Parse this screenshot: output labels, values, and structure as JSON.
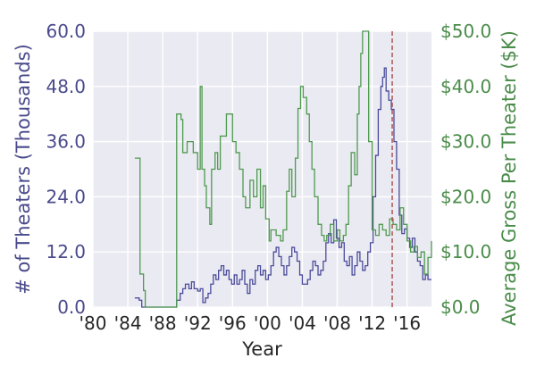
{
  "chart_data": {
    "type": "line",
    "xlabel": "Year",
    "ylabel_left": "# of Theaters (Thousands)",
    "ylabel_right": "Average Gross Per Theater ($K)",
    "xlim": [
      1980,
      2018.8
    ],
    "ylim_left": [
      0,
      60
    ],
    "ylim_right": [
      0,
      50
    ],
    "x_ticks": [
      1980,
      1984,
      1988,
      1992,
      1996,
      2000,
      2004,
      2008,
      2012,
      2016
    ],
    "x_tick_labels": [
      "'80",
      "'84",
      "'88",
      "'92",
      "'96",
      "'00",
      "'04",
      "'08",
      "'12",
      "'16"
    ],
    "y_left_ticks": [
      0,
      12,
      24,
      36,
      48,
      60
    ],
    "y_left_tick_labels": [
      "0.0",
      "12.0",
      "24.0",
      "36.0",
      "48.0",
      "60.0"
    ],
    "y_right_ticks": [
      0,
      10,
      20,
      30,
      40,
      50
    ],
    "y_right_tick_labels": [
      "$0.0",
      "$10.0",
      "$20.0",
      "$30.0",
      "$40.0",
      "$50.0"
    ],
    "grid": true,
    "background": "#eaeaf2",
    "colors": {
      "theaters": "#4b4b9b",
      "gross": "#4f9a4f",
      "marker": "#b05555"
    },
    "reference_line_x": 2014.3,
    "series": [
      {
        "axis": "left",
        "points": [
          [
            1984.8,
            2
          ],
          [
            1985.0,
            2
          ],
          [
            1985.3,
            1.5
          ],
          [
            1985.6,
            0
          ],
          [
            1986.0,
            0
          ],
          [
            1987.0,
            0
          ],
          [
            1988.0,
            0
          ],
          [
            1989.0,
            0
          ],
          [
            1989.6,
            1.5
          ],
          [
            1990.0,
            3
          ],
          [
            1990.3,
            4
          ],
          [
            1990.6,
            5
          ],
          [
            1991.0,
            4
          ],
          [
            1991.3,
            5.5
          ],
          [
            1991.6,
            4
          ],
          [
            1992.0,
            3.5
          ],
          [
            1992.3,
            4
          ],
          [
            1992.6,
            1
          ],
          [
            1992.9,
            2
          ],
          [
            1993.2,
            3
          ],
          [
            1993.5,
            5
          ],
          [
            1993.8,
            7
          ],
          [
            1994.1,
            6
          ],
          [
            1994.4,
            8
          ],
          [
            1994.7,
            9
          ],
          [
            1995.0,
            7
          ],
          [
            1995.3,
            8
          ],
          [
            1995.6,
            6
          ],
          [
            1995.9,
            5
          ],
          [
            1996.2,
            7
          ],
          [
            1996.5,
            5
          ],
          [
            1996.8,
            6
          ],
          [
            1997.1,
            8
          ],
          [
            1997.4,
            5
          ],
          [
            1997.7,
            3
          ],
          [
            1998.0,
            6
          ],
          [
            1998.3,
            5
          ],
          [
            1998.6,
            8
          ],
          [
            1998.9,
            9
          ],
          [
            1999.2,
            7
          ],
          [
            1999.5,
            8
          ],
          [
            1999.8,
            6
          ],
          [
            2000.1,
            7
          ],
          [
            2000.4,
            9
          ],
          [
            2000.7,
            12
          ],
          [
            2001.0,
            13
          ],
          [
            2001.3,
            11
          ],
          [
            2001.6,
            9
          ],
          [
            2001.9,
            7
          ],
          [
            2002.2,
            9
          ],
          [
            2002.5,
            11
          ],
          [
            2002.8,
            13
          ],
          [
            2003.1,
            12
          ],
          [
            2003.4,
            10
          ],
          [
            2003.7,
            7
          ],
          [
            2004.0,
            5
          ],
          [
            2004.3,
            5
          ],
          [
            2004.6,
            6
          ],
          [
            2004.9,
            8
          ],
          [
            2005.2,
            10
          ],
          [
            2005.5,
            9
          ],
          [
            2005.8,
            7
          ],
          [
            2006.1,
            8
          ],
          [
            2006.4,
            10
          ],
          [
            2006.7,
            14
          ],
          [
            2007.0,
            16
          ],
          [
            2007.3,
            14
          ],
          [
            2007.6,
            19
          ],
          [
            2007.9,
            15
          ],
          [
            2008.2,
            13
          ],
          [
            2008.5,
            14
          ],
          [
            2008.8,
            10
          ],
          [
            2009.1,
            9
          ],
          [
            2009.4,
            11
          ],
          [
            2009.7,
            7
          ],
          [
            2010.0,
            9
          ],
          [
            2010.3,
            12
          ],
          [
            2010.6,
            10
          ],
          [
            2010.9,
            8
          ],
          [
            2011.2,
            9
          ],
          [
            2011.5,
            12
          ],
          [
            2011.8,
            14
          ],
          [
            2012.1,
            24
          ],
          [
            2012.4,
            33
          ],
          [
            2012.7,
            43
          ],
          [
            2013.0,
            48
          ],
          [
            2013.2,
            50
          ],
          [
            2013.4,
            52
          ],
          [
            2013.6,
            47
          ],
          [
            2013.9,
            45
          ],
          [
            2014.2,
            43
          ],
          [
            2014.5,
            36
          ],
          [
            2014.8,
            30
          ],
          [
            2015.1,
            20
          ],
          [
            2015.4,
            16
          ],
          [
            2015.7,
            17
          ],
          [
            2016.0,
            15
          ],
          [
            2016.3,
            13
          ],
          [
            2016.6,
            15
          ],
          [
            2016.9,
            12
          ],
          [
            2017.2,
            10
          ],
          [
            2017.5,
            9
          ],
          [
            2017.8,
            6
          ],
          [
            2018.1,
            7
          ],
          [
            2018.4,
            6
          ],
          [
            2018.8,
            6
          ]
        ]
      },
      {
        "axis": "right",
        "points": [
          [
            1984.8,
            27
          ],
          [
            1985.3,
            27
          ],
          [
            1985.4,
            6
          ],
          [
            1985.8,
            3
          ],
          [
            1986.0,
            0
          ],
          [
            1989.5,
            0
          ],
          [
            1989.6,
            35
          ],
          [
            1990.1,
            34
          ],
          [
            1990.3,
            28
          ],
          [
            1990.8,
            30
          ],
          [
            1991.5,
            28
          ],
          [
            1992.0,
            25
          ],
          [
            1992.3,
            40
          ],
          [
            1992.5,
            25
          ],
          [
            1992.8,
            22
          ],
          [
            1993.0,
            18
          ],
          [
            1993.4,
            15
          ],
          [
            1993.6,
            25
          ],
          [
            1994.0,
            28
          ],
          [
            1994.3,
            25
          ],
          [
            1994.6,
            31
          ],
          [
            1995.3,
            35
          ],
          [
            1996.0,
            30
          ],
          [
            1996.4,
            28
          ],
          [
            1996.8,
            25
          ],
          [
            1997.2,
            20
          ],
          [
            1997.5,
            18
          ],
          [
            1998.0,
            23
          ],
          [
            1998.4,
            20
          ],
          [
            1998.8,
            25
          ],
          [
            1999.2,
            18
          ],
          [
            1999.5,
            22
          ],
          [
            1999.8,
            16
          ],
          [
            2000.2,
            12
          ],
          [
            2000.4,
            14
          ],
          [
            2001.0,
            13
          ],
          [
            2001.5,
            12
          ],
          [
            2001.8,
            14
          ],
          [
            2002.2,
            21
          ],
          [
            2002.5,
            25
          ],
          [
            2002.8,
            20
          ],
          [
            2003.2,
            27
          ],
          [
            2003.5,
            36
          ],
          [
            2003.8,
            40
          ],
          [
            2004.1,
            38
          ],
          [
            2004.5,
            35
          ],
          [
            2004.8,
            30
          ],
          [
            2005.1,
            25
          ],
          [
            2005.4,
            20
          ],
          [
            2005.8,
            15
          ],
          [
            2006.2,
            13
          ],
          [
            2006.5,
            12
          ],
          [
            2006.8,
            13
          ],
          [
            2007.2,
            15
          ],
          [
            2007.6,
            12
          ],
          [
            2008.0,
            14
          ],
          [
            2008.3,
            12
          ],
          [
            2008.7,
            13
          ],
          [
            2009.0,
            15
          ],
          [
            2009.3,
            22
          ],
          [
            2009.6,
            28
          ],
          [
            2010.0,
            24
          ],
          [
            2010.3,
            35
          ],
          [
            2010.5,
            40
          ],
          [
            2010.7,
            46
          ],
          [
            2010.9,
            50
          ],
          [
            2011.5,
            50
          ],
          [
            2011.6,
            30
          ],
          [
            2012.0,
            14
          ],
          [
            2012.4,
            13
          ],
          [
            2012.8,
            15
          ],
          [
            2013.2,
            14
          ],
          [
            2013.6,
            13
          ],
          [
            2014.0,
            16
          ],
          [
            2014.4,
            15
          ],
          [
            2014.8,
            14
          ],
          [
            2015.2,
            18
          ],
          [
            2015.6,
            15
          ],
          [
            2016.0,
            12
          ],
          [
            2016.4,
            10
          ],
          [
            2016.8,
            11
          ],
          [
            2017.2,
            9
          ],
          [
            2017.6,
            10
          ],
          [
            2018.0,
            6
          ],
          [
            2018.4,
            9
          ],
          [
            2018.8,
            12
          ]
        ]
      }
    ]
  }
}
